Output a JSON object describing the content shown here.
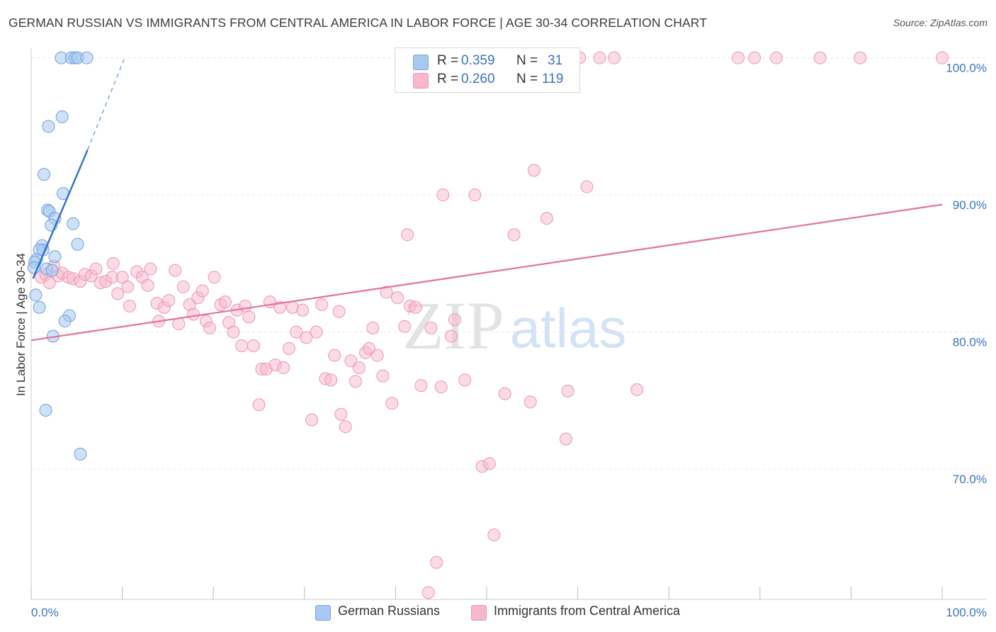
{
  "title": "GERMAN RUSSIAN VS IMMIGRANTS FROM CENTRAL AMERICA IN LABOR FORCE | AGE 30-34 CORRELATION CHART",
  "source": "Source: ZipAtlas.com",
  "watermark": {
    "zip": "ZIP",
    "atlas": "atlas"
  },
  "legend": {
    "rows": [
      {
        "r_label": "R =",
        "r_value": "0.359",
        "n_label": "N =",
        "n_value": "31",
        "color": "#a8c8f0"
      },
      {
        "r_label": "R =",
        "r_value": "0.260",
        "n_label": "N =",
        "n_value": "119",
        "color": "#f7b8cc"
      }
    ]
  },
  "bottom_legend": {
    "series_a": "German Russians",
    "series_b": "Immigrants from Central America"
  },
  "chart_data": {
    "type": "scatter",
    "title": "GERMAN RUSSIAN VS IMMIGRANTS FROM CENTRAL AMERICA IN LABOR FORCE | AGE 30-34 CORRELATION CHART",
    "xlabel": "",
    "ylabel": "In Labor Force | Age 30-34",
    "xlim": [
      0,
      100
    ],
    "ylim": [
      60.5,
      100.5
    ],
    "x_tick_labels": [
      "0.0%",
      "100.0%"
    ],
    "y_ticks": [
      70,
      80,
      90,
      100
    ],
    "y_tick_labels": [
      "70.0%",
      "80.0%",
      "90.0%",
      "100.0%"
    ],
    "grid": true,
    "legend_position": "top-center",
    "colors": {
      "blue": "#5b93d8",
      "blue_fill": "#a8c8f0",
      "pink": "#e8709a",
      "pink_fill": "#f7b8cc"
    },
    "series": [
      {
        "name": "German Russians",
        "color": "#5b93d8",
        "trend": {
          "x1": 0.2,
          "y1": 83.9,
          "x2": 6.2,
          "y2": 93.3,
          "dash_to": [
            10.2,
            99.9
          ]
        },
        "points": [
          [
            3.3,
            100
          ],
          [
            4.4,
            100
          ],
          [
            4.8,
            100
          ],
          [
            5.1,
            100
          ],
          [
            6.1,
            100
          ],
          [
            3.4,
            95.7
          ],
          [
            1.9,
            95.0
          ],
          [
            1.4,
            91.5
          ],
          [
            3.5,
            90.1
          ],
          [
            1.8,
            88.9
          ],
          [
            2.0,
            88.8
          ],
          [
            2.6,
            88.3
          ],
          [
            2.2,
            87.8
          ],
          [
            4.6,
            87.9
          ],
          [
            1.2,
            86.3
          ],
          [
            1.3,
            86.0
          ],
          [
            0.9,
            86.0
          ],
          [
            5.1,
            86.4
          ],
          [
            0.6,
            85.3
          ],
          [
            2.6,
            85.5
          ],
          [
            0.4,
            85.1
          ],
          [
            0.3,
            84.7
          ],
          [
            1.7,
            84.6
          ],
          [
            2.3,
            84.5
          ],
          [
            0.5,
            82.7
          ],
          [
            0.9,
            81.8
          ],
          [
            4.2,
            81.2
          ],
          [
            3.7,
            80.8
          ],
          [
            2.4,
            79.7
          ],
          [
            1.6,
            74.3
          ],
          [
            5.4,
            71.1
          ]
        ]
      },
      {
        "name": "Immigrants from Central America",
        "color": "#e8709a",
        "trend": {
          "x1": 0.0,
          "y1": 79.4,
          "x2": 100.0,
          "y2": 89.3
        },
        "points": [
          [
            47.7,
            100
          ],
          [
            49.2,
            100
          ],
          [
            55.3,
            100
          ],
          [
            59.6,
            100
          ],
          [
            60.2,
            100
          ],
          [
            62.4,
            100
          ],
          [
            64.0,
            100
          ],
          [
            77.6,
            100
          ],
          [
            79.4,
            100
          ],
          [
            81.8,
            100
          ],
          [
            86.6,
            100
          ],
          [
            91.0,
            100
          ],
          [
            100.0,
            100
          ],
          [
            55.2,
            91.8
          ],
          [
            61.0,
            90.6
          ],
          [
            45.2,
            90.0
          ],
          [
            48.7,
            90.0
          ],
          [
            56.6,
            88.3
          ],
          [
            41.3,
            87.1
          ],
          [
            53.0,
            87.1
          ],
          [
            1.1,
            84.0
          ],
          [
            1.6,
            84.2
          ],
          [
            2.0,
            83.6
          ],
          [
            2.5,
            84.8
          ],
          [
            3.0,
            84.1
          ],
          [
            3.4,
            84.3
          ],
          [
            4.1,
            84.0
          ],
          [
            4.6,
            83.9
          ],
          [
            5.4,
            83.7
          ],
          [
            5.9,
            84.2
          ],
          [
            6.6,
            84.1
          ],
          [
            7.1,
            84.6
          ],
          [
            7.6,
            83.6
          ],
          [
            8.2,
            83.7
          ],
          [
            8.9,
            84.0
          ],
          [
            9.0,
            85.0
          ],
          [
            9.5,
            82.8
          ],
          [
            10.0,
            84.0
          ],
          [
            10.6,
            83.3
          ],
          [
            10.8,
            81.9
          ],
          [
            11.6,
            84.4
          ],
          [
            12.2,
            84.0
          ],
          [
            12.8,
            83.4
          ],
          [
            13.1,
            84.6
          ],
          [
            13.8,
            82.1
          ],
          [
            14.0,
            80.8
          ],
          [
            14.6,
            81.8
          ],
          [
            15.1,
            82.3
          ],
          [
            15.8,
            84.5
          ],
          [
            16.2,
            80.6
          ],
          [
            16.7,
            83.3
          ],
          [
            17.4,
            82.0
          ],
          [
            17.8,
            81.3
          ],
          [
            18.3,
            82.5
          ],
          [
            18.8,
            83.0
          ],
          [
            19.2,
            80.8
          ],
          [
            19.6,
            80.3
          ],
          [
            20.1,
            84.0
          ],
          [
            20.8,
            82.0
          ],
          [
            21.3,
            82.2
          ],
          [
            21.7,
            80.7
          ],
          [
            22.2,
            80.0
          ],
          [
            22.6,
            81.6
          ],
          [
            23.1,
            79.0
          ],
          [
            23.5,
            81.9
          ],
          [
            23.9,
            81.1
          ],
          [
            24.4,
            79.0
          ],
          [
            25.0,
            74.7
          ],
          [
            25.3,
            77.3
          ],
          [
            25.8,
            77.3
          ],
          [
            26.2,
            82.2
          ],
          [
            26.8,
            77.6
          ],
          [
            27.3,
            81.8
          ],
          [
            27.7,
            77.4
          ],
          [
            28.3,
            78.8
          ],
          [
            28.7,
            81.8
          ],
          [
            29.1,
            80.0
          ],
          [
            29.8,
            81.6
          ],
          [
            30.2,
            79.6
          ],
          [
            30.8,
            73.6
          ],
          [
            31.3,
            80.0
          ],
          [
            31.9,
            82.0
          ],
          [
            32.3,
            76.6
          ],
          [
            32.9,
            76.5
          ],
          [
            33.3,
            78.3
          ],
          [
            33.8,
            81.5
          ],
          [
            34.0,
            74.0
          ],
          [
            34.5,
            73.1
          ],
          [
            35.1,
            77.9
          ],
          [
            35.6,
            76.4
          ],
          [
            36.0,
            77.4
          ],
          [
            36.7,
            78.5
          ],
          [
            37.1,
            78.8
          ],
          [
            37.5,
            80.3
          ],
          [
            38.0,
            78.3
          ],
          [
            38.6,
            76.8
          ],
          [
            39.0,
            82.9
          ],
          [
            39.6,
            74.8
          ],
          [
            40.2,
            82.5
          ],
          [
            41.0,
            80.4
          ],
          [
            41.6,
            81.9
          ],
          [
            42.2,
            81.8
          ],
          [
            42.8,
            76.1
          ],
          [
            43.9,
            80.3
          ],
          [
            45.0,
            76.0
          ],
          [
            46.1,
            79.7
          ],
          [
            46.5,
            80.9
          ],
          [
            47.6,
            76.5
          ],
          [
            49.5,
            70.2
          ],
          [
            50.3,
            70.4
          ],
          [
            52.0,
            75.5
          ],
          [
            54.8,
            74.9
          ],
          [
            58.7,
            72.2
          ],
          [
            58.9,
            75.7
          ],
          [
            66.5,
            75.8
          ],
          [
            50.8,
            65.2
          ],
          [
            44.5,
            63.2
          ],
          [
            43.6,
            61.0
          ]
        ]
      }
    ]
  }
}
